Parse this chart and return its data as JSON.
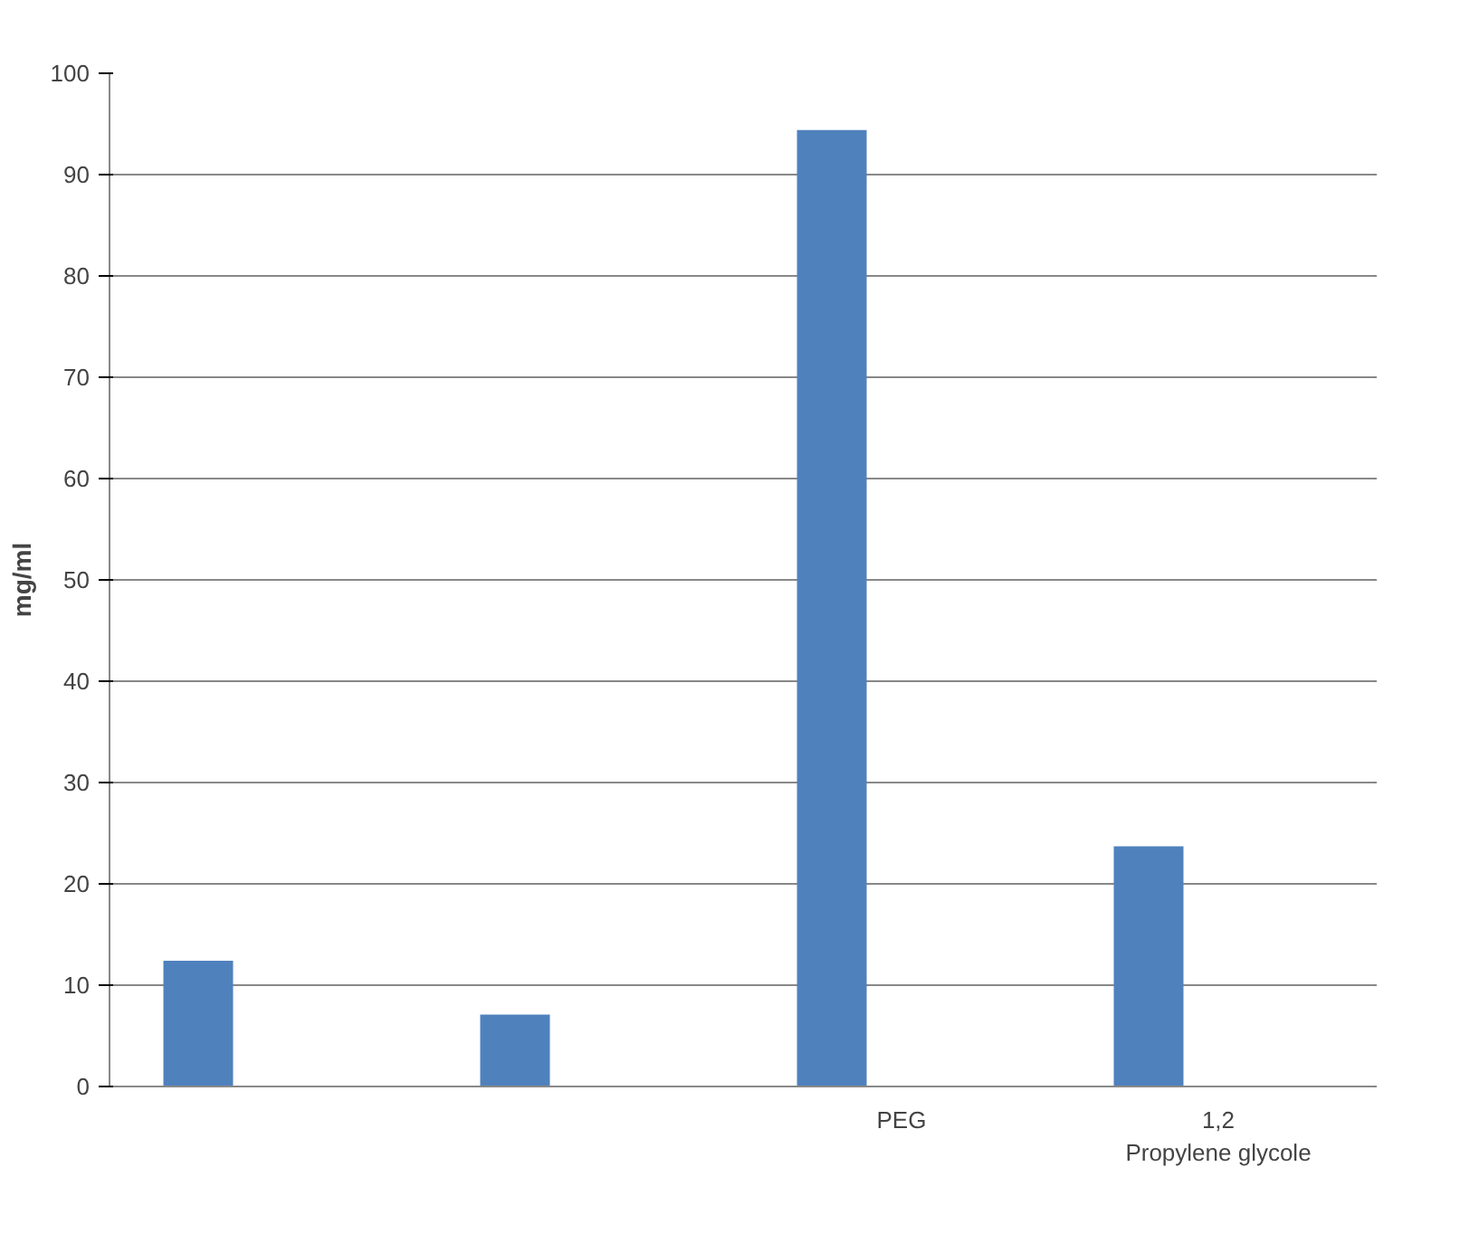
{
  "chart_data": {
    "type": "bar",
    "ylabel": "mg/ml",
    "categories": [
      null,
      null,
      "PEG",
      "1,2 Propylene glycole"
    ],
    "values": [
      12.4,
      7.1,
      94.4,
      23.7
    ],
    "color": "#4f81bd",
    "ylim": [
      0,
      100
    ],
    "yticks": [
      0,
      10,
      20,
      30,
      40,
      50,
      60,
      70,
      80,
      90,
      100
    ],
    "grid": "y"
  }
}
